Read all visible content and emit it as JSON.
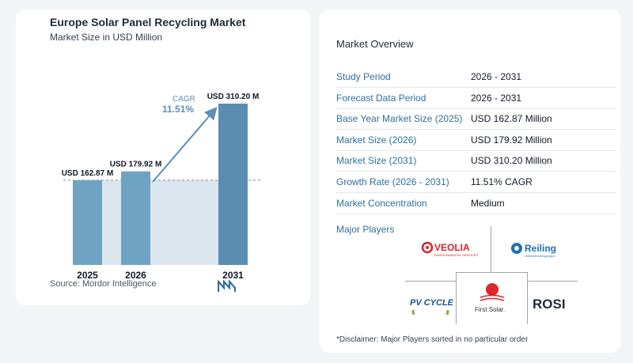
{
  "chart": {
    "title": "Europe Solar Panel Recycling Market",
    "subtitle": "Market Size in USD Million",
    "source": "Source:  Mordor Intelligence",
    "cagr_label": "CAGR",
    "cagr_value": "11.51%"
  },
  "chart_data": {
    "type": "bar",
    "categories": [
      "2025",
      "2026",
      "2031"
    ],
    "values": [
      162.87,
      179.92,
      310.2
    ],
    "data_labels": [
      "USD 162.87 M",
      "USD 179.92 M",
      "USD 310.20 M"
    ],
    "title": "Europe Solar Panel Recycling Market",
    "subtitle": "Market Size in USD Million",
    "ylim": [
      0,
      310.2
    ],
    "colors": {
      "bar": "#6fa3c3",
      "bar_dark": "#5a8db1",
      "shade": "#dbe6ef",
      "arrow": "#5b8fb7"
    }
  },
  "overview": {
    "title": "Market Overview",
    "rows": [
      {
        "label": "Study Period",
        "value": "2026 - 2031"
      },
      {
        "label": "Forecast Data Period",
        "value": "2026 - 2031"
      },
      {
        "label": "Base Year Market Size (2025)",
        "value": "USD 162.87 Million"
      },
      {
        "label": "Market Size (2026)",
        "value": "USD 179.92 Million"
      },
      {
        "label": "Market Size (2031)",
        "value": "USD 310.20 Million"
      },
      {
        "label": "Growth Rate (2026 - 2031)",
        "value": "11.51% CAGR"
      },
      {
        "label": "Market Concentration",
        "value": "Medium"
      }
    ],
    "players_title": "Major Players",
    "players": [
      "VEOLIA",
      "Reiling",
      "PV CYCLE",
      "First Solar.",
      "ROSI"
    ],
    "veolia_sub": "ENVIRONMENTAL SERVICES",
    "reiling_sub": "Unternehmensgruppe",
    "disclaimer": "*Disclaimer: Major Players sorted in no particular order"
  }
}
